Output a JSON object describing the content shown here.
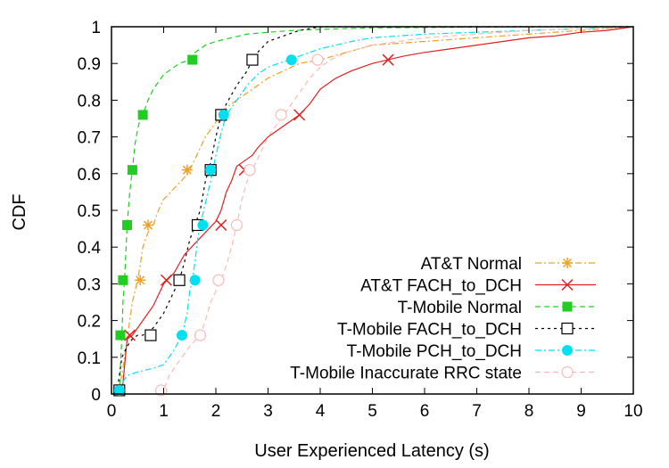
{
  "chart_data": {
    "type": "line",
    "title": "",
    "xlabel": "User Experienced Latency (s)",
    "ylabel": "CDF",
    "xlim": [
      0,
      10
    ],
    "ylim": [
      0,
      1
    ],
    "xticks": [
      "0",
      "1",
      "2",
      "3",
      "4",
      "5",
      "6",
      "7",
      "8",
      "9",
      "10"
    ],
    "yticks": [
      "0",
      "0.1",
      "0.2",
      "0.3",
      "0.4",
      "0.5",
      "0.6",
      "0.7",
      "0.8",
      "0.9",
      "1"
    ],
    "grid": false,
    "legend_position": "bottom-right",
    "series": [
      {
        "name": "AT&T Normal",
        "color": "#f0a020",
        "dash": "dashdot",
        "marker": "star",
        "x": [
          0.1,
          0.2,
          0.25,
          0.3,
          0.35,
          0.4,
          0.45,
          0.5,
          0.55,
          0.6,
          0.7,
          0.8,
          0.9,
          1.0,
          1.2,
          1.4,
          1.5,
          1.6,
          1.7,
          1.8,
          1.9,
          2.0,
          2.1,
          2.2,
          2.4,
          2.6,
          2.8,
          3.0,
          3.3,
          3.6,
          4.0,
          4.5,
          5.0,
          6.0,
          7.0,
          8.0,
          9.0,
          9.5,
          10.0
        ],
        "y": [
          0.0,
          0.05,
          0.1,
          0.15,
          0.2,
          0.25,
          0.28,
          0.31,
          0.35,
          0.4,
          0.44,
          0.46,
          0.5,
          0.53,
          0.56,
          0.59,
          0.61,
          0.64,
          0.67,
          0.7,
          0.72,
          0.74,
          0.76,
          0.78,
          0.8,
          0.82,
          0.84,
          0.86,
          0.88,
          0.9,
          0.91,
          0.93,
          0.95,
          0.96,
          0.97,
          0.98,
          0.99,
          0.995,
          1.0
        ],
        "marker_x": [
          0.55,
          0.7,
          1.45
        ],
        "marker_y": [
          0.31,
          0.46,
          0.61
        ]
      },
      {
        "name": "AT&T FACH_to_DCH",
        "color": "#e02020",
        "dash": "solid",
        "marker": "x",
        "x": [
          0.2,
          0.3,
          0.4,
          0.6,
          0.8,
          1.0,
          1.2,
          1.4,
          1.6,
          1.8,
          2.0,
          2.1,
          2.2,
          2.3,
          2.4,
          2.5,
          2.6,
          2.7,
          2.8,
          3.0,
          3.2,
          3.4,
          3.6,
          3.8,
          4.0,
          4.3,
          4.6,
          5.0,
          5.3,
          5.6,
          6.0,
          6.5,
          7.0,
          7.5,
          8.0,
          8.5,
          9.0,
          9.5,
          10.0
        ],
        "y": [
          0.0,
          0.15,
          0.16,
          0.2,
          0.24,
          0.3,
          0.33,
          0.38,
          0.41,
          0.44,
          0.47,
          0.5,
          0.55,
          0.58,
          0.62,
          0.63,
          0.64,
          0.65,
          0.67,
          0.7,
          0.72,
          0.74,
          0.76,
          0.79,
          0.83,
          0.86,
          0.88,
          0.9,
          0.91,
          0.92,
          0.93,
          0.94,
          0.95,
          0.96,
          0.97,
          0.975,
          0.985,
          0.99,
          1.0
        ],
        "marker_x": [
          0.35,
          1.05,
          2.1,
          2.55,
          3.6,
          5.3
        ],
        "marker_y": [
          0.16,
          0.31,
          0.46,
          0.61,
          0.76,
          0.91
        ]
      },
      {
        "name": "T-Mobile Normal",
        "color": "#22cc22",
        "dash": "dashed",
        "marker": "square",
        "x": [
          0.15,
          0.18,
          0.2,
          0.22,
          0.25,
          0.28,
          0.3,
          0.35,
          0.4,
          0.45,
          0.5,
          0.55,
          0.6,
          0.7,
          0.8,
          0.9,
          1.0,
          1.1,
          1.2,
          1.3,
          1.4,
          1.5,
          1.6,
          1.8,
          2.0,
          2.3,
          2.6,
          3.0,
          3.5,
          4.0,
          4.5,
          5.0,
          6.0,
          7.0,
          8.0,
          10.0
        ],
        "y": [
          0.0,
          0.1,
          0.16,
          0.25,
          0.31,
          0.4,
          0.46,
          0.55,
          0.61,
          0.68,
          0.72,
          0.75,
          0.76,
          0.8,
          0.83,
          0.85,
          0.87,
          0.88,
          0.89,
          0.9,
          0.905,
          0.91,
          0.93,
          0.95,
          0.96,
          0.97,
          0.98,
          0.985,
          0.99,
          0.993,
          0.995,
          0.997,
          0.998,
          0.999,
          1.0,
          1.0
        ],
        "marker_x": [
          0.17,
          0.22,
          0.3,
          0.4,
          0.6,
          1.55
        ],
        "marker_y": [
          0.16,
          0.31,
          0.46,
          0.61,
          0.76,
          0.91
        ]
      },
      {
        "name": "T-Mobile FACH_to_DCH",
        "color": "#000000",
        "dash": "dotted",
        "marker": "open-square",
        "x": [
          0.1,
          0.15,
          0.2,
          0.3,
          0.4,
          0.5,
          0.6,
          0.8,
          1.0,
          1.2,
          1.3,
          1.4,
          1.5,
          1.6,
          1.7,
          1.8,
          1.9,
          2.0,
          2.1,
          2.2,
          2.4,
          2.6,
          2.7,
          2.8,
          3.0,
          3.2,
          3.4,
          3.6,
          3.8,
          4.0,
          4.5,
          5.0,
          6.0,
          10.0
        ],
        "y": [
          0.0,
          0.05,
          0.1,
          0.13,
          0.15,
          0.16,
          0.16,
          0.18,
          0.22,
          0.28,
          0.31,
          0.36,
          0.42,
          0.46,
          0.5,
          0.58,
          0.63,
          0.7,
          0.76,
          0.79,
          0.84,
          0.88,
          0.91,
          0.93,
          0.96,
          0.97,
          0.98,
          0.99,
          0.995,
          1.0,
          1.0,
          1.0,
          1.0,
          1.0
        ],
        "marker_x": [
          0.15,
          0.75,
          1.3,
          1.65,
          1.9,
          2.1,
          2.7
        ],
        "marker_y": [
          0.01,
          0.16,
          0.31,
          0.46,
          0.61,
          0.76,
          0.91
        ]
      },
      {
        "name": "T-Mobile PCH_to_DCH",
        "color": "#00e0f0",
        "dash": "dashdot",
        "marker": "circle",
        "x": [
          0.1,
          0.15,
          0.2,
          0.3,
          0.5,
          0.8,
          1.0,
          1.2,
          1.35,
          1.45,
          1.5,
          1.55,
          1.6,
          1.65,
          1.7,
          1.8,
          1.9,
          2.0,
          2.1,
          2.2,
          2.4,
          2.6,
          2.8,
          3.0,
          3.2,
          3.4,
          3.6,
          3.8,
          4.0,
          4.3,
          4.6,
          5.0,
          5.5,
          6.0,
          7.0,
          8.0,
          9.0,
          10.0
        ],
        "y": [
          0.0,
          0.01,
          0.03,
          0.05,
          0.06,
          0.07,
          0.08,
          0.12,
          0.16,
          0.22,
          0.28,
          0.31,
          0.36,
          0.42,
          0.46,
          0.52,
          0.58,
          0.65,
          0.71,
          0.76,
          0.8,
          0.84,
          0.87,
          0.89,
          0.9,
          0.91,
          0.92,
          0.93,
          0.94,
          0.95,
          0.96,
          0.97,
          0.975,
          0.98,
          0.985,
          0.99,
          0.995,
          1.0
        ],
        "marker_x": [
          0.15,
          1.35,
          1.6,
          1.75,
          1.9,
          2.15,
          3.45
        ],
        "marker_y": [
          0.01,
          0.16,
          0.31,
          0.46,
          0.61,
          0.76,
          0.91
        ]
      },
      {
        "name": "T-Mobile Inaccurate RRC state",
        "color": "#ffb8b8",
        "dash": "dashed",
        "marker": "open-circle",
        "x": [
          0.9,
          1.0,
          1.1,
          1.3,
          1.5,
          1.7,
          1.8,
          1.9,
          2.0,
          2.05,
          2.1,
          2.2,
          2.3,
          2.4,
          2.5,
          2.6,
          2.7,
          2.8,
          3.0,
          3.2,
          3.4,
          3.6,
          3.8,
          4.0,
          4.2,
          4.5,
          5.0,
          5.5,
          6.0,
          6.5,
          7.0,
          8.0,
          9.0,
          10.0
        ],
        "y": [
          0.0,
          0.01,
          0.05,
          0.09,
          0.13,
          0.16,
          0.2,
          0.25,
          0.28,
          0.3,
          0.31,
          0.35,
          0.4,
          0.46,
          0.53,
          0.58,
          0.61,
          0.64,
          0.7,
          0.74,
          0.78,
          0.82,
          0.86,
          0.89,
          0.91,
          0.93,
          0.95,
          0.96,
          0.97,
          0.975,
          0.98,
          0.99,
          0.995,
          1.0
        ],
        "marker_x": [
          0.95,
          1.7,
          2.05,
          2.4,
          2.65,
          3.25,
          3.95
        ],
        "marker_y": [
          0.01,
          0.16,
          0.31,
          0.46,
          0.61,
          0.76,
          0.91
        ]
      }
    ]
  }
}
